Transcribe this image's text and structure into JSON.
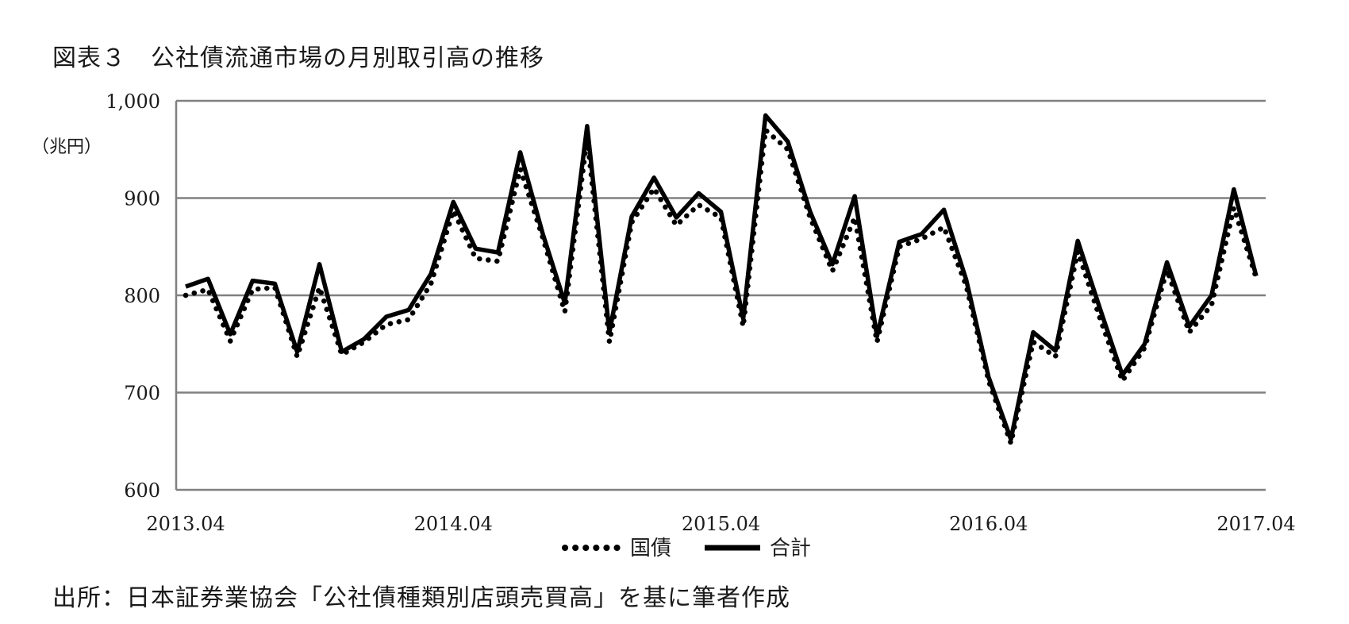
{
  "title": "図表３　公社債流通市場の月別取引高の推移",
  "source": "出所：日本証券業協会「公社債種類別店頭売買高」を基に筆者作成",
  "chart_data": {
    "type": "line",
    "ylabel": "（兆円）",
    "ylim": [
      600,
      1000
    ],
    "yticks": [
      600,
      700,
      800,
      900,
      1000
    ],
    "ytick_labels": [
      "600",
      "700",
      "800",
      "900",
      "1,000"
    ],
    "x": [
      "2013.04",
      "2013.05",
      "2013.06",
      "2013.07",
      "2013.08",
      "2013.09",
      "2013.10",
      "2013.11",
      "2013.12",
      "2014.01",
      "2014.02",
      "2014.03",
      "2014.04",
      "2014.05",
      "2014.06",
      "2014.07",
      "2014.08",
      "2014.09",
      "2014.10",
      "2014.11",
      "2014.12",
      "2015.01",
      "2015.02",
      "2015.03",
      "2015.04",
      "2015.05",
      "2015.06",
      "2015.07",
      "2015.08",
      "2015.09",
      "2015.10",
      "2015.11",
      "2015.12",
      "2016.01",
      "2016.02",
      "2016.03",
      "2016.04",
      "2016.05",
      "2016.06",
      "2016.07",
      "2016.08",
      "2016.09",
      "2016.10",
      "2016.11",
      "2016.12",
      "2017.01",
      "2017.02",
      "2017.03",
      "2017.04"
    ],
    "xtick_labels": [
      "2013.04",
      "2014.04",
      "2015.04",
      "2016.04",
      "2017.04"
    ],
    "grid": true,
    "legend_position": "bottom",
    "series": [
      {
        "name": "国債",
        "style": "dotted",
        "color": "#000000",
        "values": [
          800,
          806,
          753,
          806,
          808,
          737,
          808,
          739,
          752,
          770,
          775,
          812,
          887,
          838,
          835,
          930,
          860,
          783,
          962,
          752,
          875,
          910,
          872,
          893,
          880,
          768,
          970,
          950,
          880,
          825,
          880,
          752,
          850,
          858,
          870,
          810,
          712,
          648,
          752,
          737,
          845,
          776,
          712,
          746,
          826,
          762,
          790,
          890,
          818
        ]
      },
      {
        "name": "合計",
        "style": "solid",
        "color": "#000000",
        "values": [
          809,
          817,
          760,
          815,
          812,
          742,
          832,
          742,
          755,
          778,
          785,
          822,
          896,
          848,
          844,
          947,
          864,
          792,
          974,
          762,
          881,
          921,
          880,
          905,
          886,
          776,
          985,
          958,
          886,
          832,
          902,
          758,
          855,
          863,
          888,
          816,
          716,
          652,
          762,
          743,
          856,
          786,
          718,
          750,
          834,
          768,
          800,
          909,
          820
        ]
      }
    ]
  }
}
